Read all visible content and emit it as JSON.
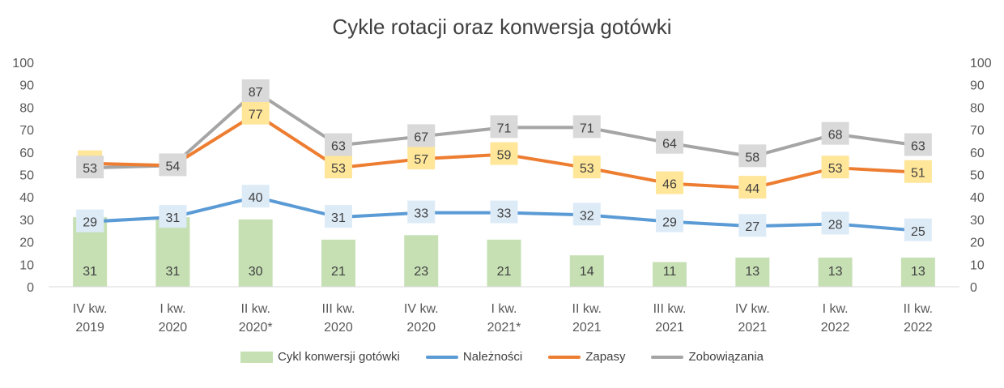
{
  "chart_data": {
    "type": "bar+line",
    "title": "Cykle rotacji oraz konwersja gotówki",
    "categories": [
      [
        "IV kw.",
        "2019"
      ],
      [
        "I kw.",
        "2020"
      ],
      [
        "II kw.",
        "2020*"
      ],
      [
        "III kw.",
        "2020"
      ],
      [
        "IV kw.",
        "2020"
      ],
      [
        "I kw.",
        "2021*"
      ],
      [
        "II kw.",
        "2021"
      ],
      [
        "III kw.",
        "2021"
      ],
      [
        "IV kw.",
        "2021"
      ],
      [
        "I kw.",
        "2022"
      ],
      [
        "II kw.",
        "2022"
      ]
    ],
    "y_left_ticks": [
      "0",
      "10",
      "20",
      "30",
      "40",
      "50",
      "60",
      "70",
      "80",
      "90",
      "100"
    ],
    "y_right_ticks": [
      "0",
      "10",
      "20",
      "30",
      "40",
      "50",
      "60",
      "70",
      "80",
      "90",
      "100"
    ],
    "ylim": [
      0,
      100
    ],
    "grid": false,
    "legend_position": "bottom",
    "series": [
      {
        "name": "Cykl konwersji gotówki",
        "kind": "bar",
        "color": "#c6e0b4",
        "values": [
          31,
          31,
          30,
          21,
          23,
          21,
          14,
          11,
          13,
          13,
          13
        ]
      },
      {
        "name": "Należności",
        "kind": "line",
        "color": "#5b9bd5",
        "label_bg": "#ddebf7",
        "values": [
          29,
          31,
          40,
          31,
          33,
          33,
          32,
          29,
          27,
          28,
          25
        ]
      },
      {
        "name": "Zapasy",
        "kind": "line",
        "color": "#ed7d31",
        "label_bg": "#ffe699",
        "values": [
          55,
          54,
          77,
          53,
          57,
          59,
          53,
          46,
          44,
          53,
          51
        ]
      },
      {
        "name": "Zobowiązania",
        "kind": "line",
        "color": "#a5a5a5",
        "label_bg": "#d9d9d9",
        "values": [
          53,
          54,
          87,
          63,
          67,
          71,
          71,
          64,
          58,
          68,
          63
        ]
      }
    ],
    "line_labels": {
      "Zapasy": [
        "",
        "",
        "77",
        "53",
        "57",
        "59",
        "53",
        "46",
        "44",
        "53",
        "51"
      ],
      "Zobowiązania": [
        "53",
        "54",
        "87",
        "63",
        "67",
        "71",
        "71",
        "64",
        "58",
        "68",
        "63"
      ],
      "Należności": [
        "29",
        "31",
        "40",
        "31",
        "33",
        "33",
        "32",
        "29",
        "27",
        "28",
        "25"
      ],
      "Cykl konwersji gotówki": [
        "31",
        "31",
        "30",
        "21",
        "23",
        "21",
        "14",
        "11",
        "13",
        "13",
        "13"
      ]
    }
  }
}
